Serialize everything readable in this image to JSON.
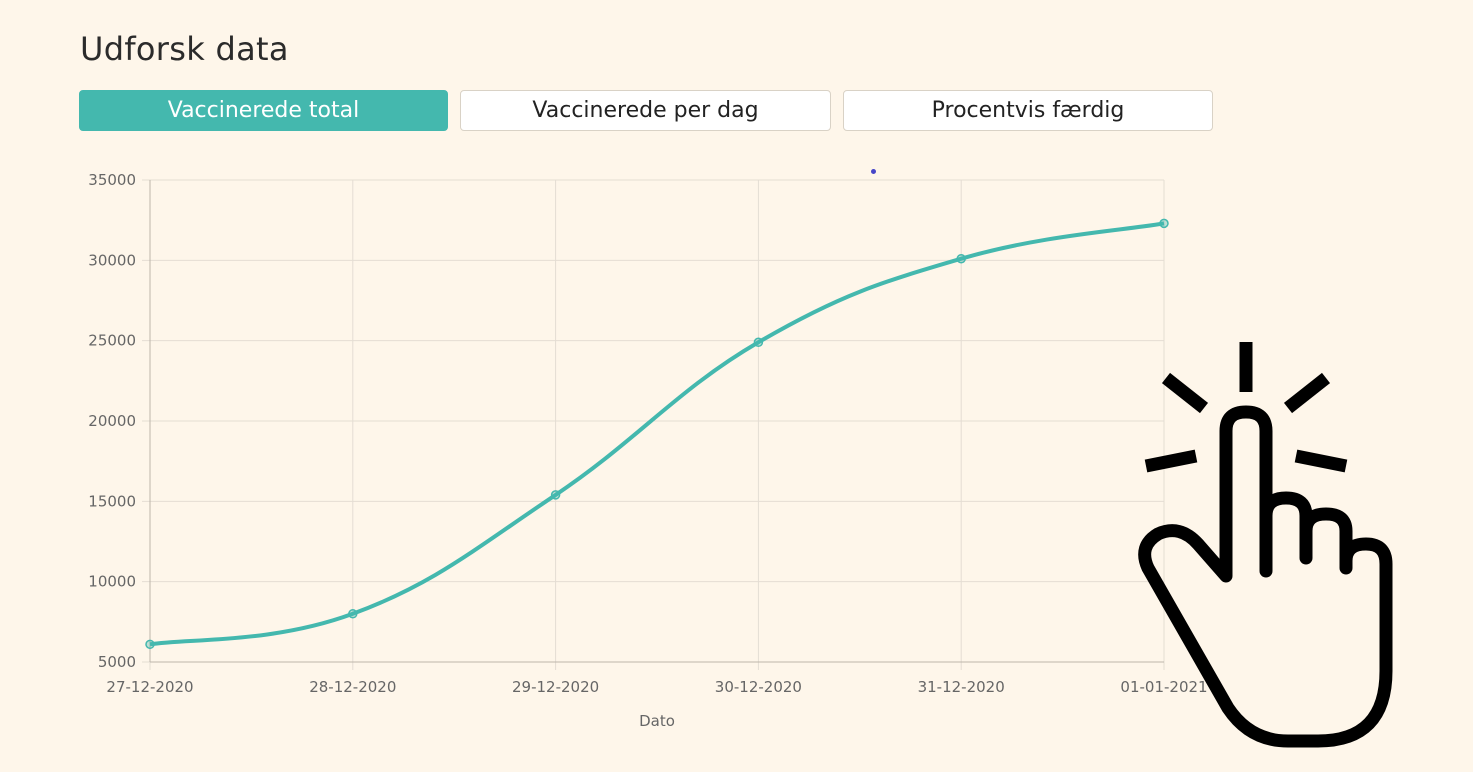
{
  "header": {
    "title": "Udforsk data"
  },
  "tabs": [
    {
      "label": "Vaccinerede total",
      "active": true
    },
    {
      "label": "Vaccinerede per dag",
      "active": false
    },
    {
      "label": "Procentvis færdig",
      "active": false
    }
  ],
  "colors": {
    "accent": "#44b8ae",
    "background": "#fef6ea",
    "grid": "#e4ddd3"
  },
  "chart_data": {
    "type": "line",
    "title": "",
    "xlabel": "Dato",
    "ylabel": "",
    "categories": [
      "27-12-2020",
      "28-12-2020",
      "29-12-2020",
      "30-12-2020",
      "31-12-2020",
      "01-01-2021"
    ],
    "series": [
      {
        "values": [
          6100,
          8000,
          15400,
          24900,
          30100,
          32300
        ]
      }
    ],
    "ylim": [
      5000,
      35000
    ],
    "yticks": [
      5000,
      10000,
      15000,
      20000,
      25000,
      30000,
      35000
    ],
    "grid": true,
    "legend": "none"
  },
  "overlay": {
    "icon": "pointing-hand-click-icon"
  }
}
